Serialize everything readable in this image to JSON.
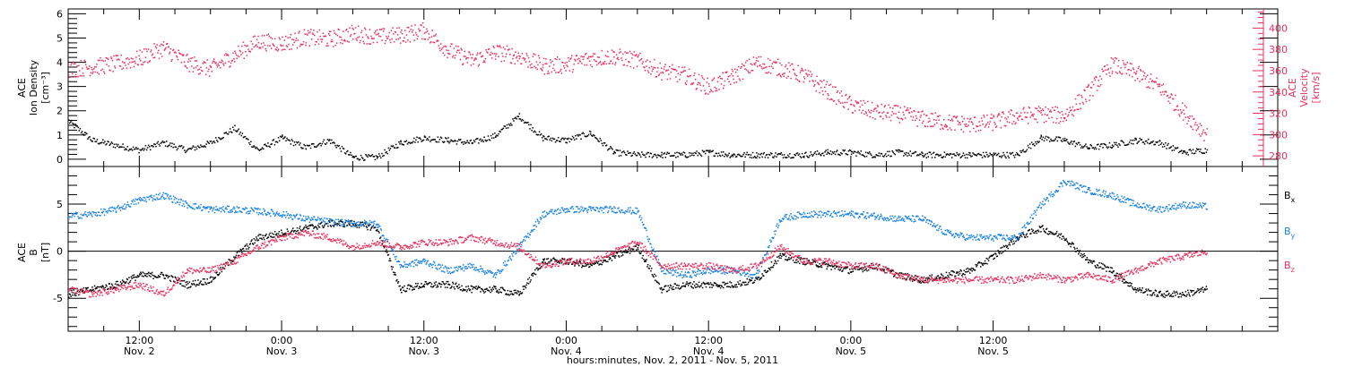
{
  "chart_data": [
    {
      "type": "scatter",
      "panel": "top",
      "ylabel_left": [
        "ACE",
        "Ion Density",
        "[cm⁻³]"
      ],
      "ylabel_right": [
        "ACE",
        "Velocity",
        "[km/s]"
      ],
      "yticks_left": [
        "0",
        "1",
        "2",
        "3",
        "4",
        "5",
        "6"
      ],
      "yticks_right": [
        "280",
        "300",
        "320",
        "340",
        "360",
        "380",
        "400"
      ],
      "ylim_left": [
        -0.3,
        6.2
      ],
      "ylim_right": [
        270,
        418
      ],
      "right_axis_color": "#e8305c",
      "series": [
        {
          "axis": "left",
          "color": "#000000",
          "x": [
            0,
            2,
            4,
            6,
            8,
            10,
            12,
            14,
            16,
            18,
            20,
            22,
            24,
            26,
            28,
            30,
            32,
            34,
            36,
            38,
            40,
            42,
            44,
            46,
            48,
            50,
            52,
            54,
            56,
            58,
            60,
            62,
            64,
            66,
            68,
            70,
            72,
            74,
            76,
            78,
            80,
            82,
            84,
            86,
            88,
            90,
            92,
            94,
            96
          ],
          "values": [
            1.6,
            0.8,
            0.6,
            0.4,
            0.7,
            0.4,
            0.7,
            1.3,
            0.4,
            0.9,
            0.5,
            0.8,
            0.1,
            0.1,
            0.7,
            0.9,
            0.8,
            0.7,
            1.0,
            1.8,
            0.9,
            0.8,
            1.1,
            0.3,
            0.2,
            0.2,
            0.2,
            0.3,
            0.2,
            0.2,
            0.2,
            0.2,
            0.3,
            0.3,
            0.2,
            0.3,
            0.2,
            0.2,
            0.2,
            0.2,
            0.2,
            0.9,
            0.8,
            0.5,
            0.6,
            0.8,
            0.7,
            0.3,
            0.4
          ]
        },
        {
          "axis": "right",
          "color": "#e8305c",
          "x": [
            0,
            2,
            4,
            6,
            8,
            10,
            12,
            14,
            16,
            18,
            20,
            22,
            24,
            26,
            28,
            30,
            32,
            34,
            36,
            38,
            40,
            42,
            44,
            46,
            48,
            50,
            52,
            54,
            56,
            58,
            60,
            62,
            64,
            66,
            68,
            70,
            72,
            74,
            76,
            78,
            80,
            82,
            84,
            86,
            88,
            90,
            92,
            94,
            96
          ],
          "values": [
            362,
            364,
            367,
            372,
            382,
            368,
            362,
            375,
            388,
            386,
            392,
            390,
            396,
            392,
            394,
            398,
            380,
            370,
            378,
            374,
            365,
            366,
            372,
            374,
            370,
            360,
            356,
            345,
            355,
            368,
            363,
            356,
            342,
            328,
            322,
            320,
            315,
            312,
            310,
            312,
            318,
            320,
            318,
            340,
            366,
            358,
            345,
            322,
            300
          ]
        }
      ]
    },
    {
      "type": "scatter",
      "panel": "bottom",
      "ylabel_left": [
        "ACE",
        "B",
        "[nT]"
      ],
      "yticks_left": [
        "-5",
        "0",
        "5"
      ],
      "ylim": [
        -8.5,
        9.0
      ],
      "series": [
        {
          "name": "Bx",
          "color": "#000000",
          "x": [
            0,
            2,
            4,
            6,
            8,
            10,
            12,
            14,
            16,
            18,
            20,
            22,
            24,
            26,
            28,
            30,
            32,
            34,
            36,
            38,
            40,
            42,
            44,
            46,
            48,
            50,
            52,
            54,
            56,
            58,
            60,
            62,
            64,
            66,
            68,
            70,
            72,
            74,
            76,
            78,
            80,
            82,
            84,
            86,
            88,
            90,
            92,
            94,
            96
          ],
          "values": [
            -4.5,
            -4.0,
            -3.5,
            -2.5,
            -2.5,
            -3.5,
            -3.0,
            -0.5,
            1.5,
            2.0,
            2.5,
            3.0,
            3.0,
            2.5,
            -4.0,
            -3.5,
            -3.5,
            -4.0,
            -4.0,
            -4.5,
            -1.0,
            -1.0,
            -1.5,
            -0.5,
            0.5,
            -4.0,
            -3.5,
            -3.5,
            -3.5,
            -3.0,
            -0.5,
            -1.0,
            -1.5,
            -2.0,
            -1.5,
            -2.5,
            -3.0,
            -2.5,
            -2.0,
            -0.5,
            1.5,
            2.5,
            1.5,
            -1.0,
            -2.0,
            -4.0,
            -4.5,
            -4.5,
            -4.0
          ]
        },
        {
          "name": "By",
          "color": "#1a82e0",
          "x": [
            0,
            2,
            4,
            6,
            8,
            10,
            12,
            14,
            16,
            18,
            20,
            22,
            24,
            26,
            28,
            30,
            32,
            34,
            36,
            38,
            40,
            42,
            44,
            46,
            48,
            50,
            52,
            54,
            56,
            58,
            60,
            62,
            64,
            66,
            68,
            70,
            72,
            74,
            76,
            78,
            80,
            82,
            84,
            86,
            88,
            90,
            92,
            94,
            96
          ],
          "values": [
            3.8,
            4.0,
            4.5,
            5.5,
            6.0,
            5.0,
            4.5,
            4.5,
            4.3,
            4.0,
            3.5,
            3.2,
            3.0,
            3.0,
            -1.5,
            -1.0,
            -2.0,
            -1.5,
            -2.5,
            0.5,
            4.0,
            4.5,
            4.5,
            4.5,
            4.3,
            -2.0,
            -2.5,
            -2.0,
            -2.0,
            -2.5,
            3.5,
            4.0,
            4.0,
            4.0,
            3.8,
            3.5,
            3.5,
            2.0,
            1.5,
            1.5,
            1.5,
            5.0,
            7.5,
            6.5,
            6.0,
            5.0,
            4.5,
            5.0,
            4.8
          ]
        },
        {
          "name": "Bz",
          "color": "#e8305c",
          "x": [
            0,
            2,
            4,
            6,
            8,
            10,
            12,
            14,
            16,
            18,
            20,
            22,
            24,
            26,
            28,
            30,
            32,
            34,
            36,
            38,
            40,
            42,
            44,
            46,
            48,
            50,
            52,
            54,
            56,
            58,
            60,
            62,
            64,
            66,
            68,
            70,
            72,
            74,
            76,
            78,
            80,
            82,
            84,
            86,
            88,
            90,
            92,
            94,
            96
          ],
          "values": [
            -4.0,
            -4.5,
            -4.0,
            -3.5,
            -4.5,
            -2.0,
            -2.0,
            -1.0,
            0.5,
            1.5,
            2.0,
            1.5,
            0.5,
            1.0,
            0.5,
            1.0,
            1.0,
            1.5,
            1.0,
            0.5,
            -1.5,
            -1.0,
            -1.0,
            0.0,
            1.0,
            -1.5,
            -1.5,
            -1.5,
            -2.0,
            -1.5,
            0.5,
            -1.0,
            -1.0,
            -1.5,
            -1.5,
            -2.5,
            -3.0,
            -3.0,
            -3.0,
            -3.0,
            -3.0,
            -2.5,
            -3.0,
            -2.5,
            -3.0,
            -2.0,
            -1.0,
            -0.5,
            0.0
          ]
        }
      ]
    }
  ],
  "x_axis": {
    "unit": "hours from Nov. 2 06:00",
    "range": [
      0,
      102
    ],
    "data_extent": [
      0,
      96
    ],
    "major_ticks": [
      {
        "x": 6,
        "time": "12:00",
        "day": "Nov. 2"
      },
      {
        "x": 18,
        "time": "0:00",
        "day": "Nov. 3"
      },
      {
        "x": 30,
        "time": "12:00",
        "day": "Nov. 3"
      },
      {
        "x": 42,
        "time": "0:00",
        "day": "Nov. 4"
      },
      {
        "x": 54,
        "time": "12:00",
        "day": "Nov. 4"
      },
      {
        "x": 66,
        "time": "0:00",
        "day": "Nov. 5"
      },
      {
        "x": 78,
        "time": "12:00",
        "day": "Nov. 5"
      }
    ],
    "xlabel": "hours:minutes, Nov.  2, 2011 - Nov.  5, 2011"
  },
  "legend": [
    {
      "base": "B",
      "sub": "x",
      "color": "#000000"
    },
    {
      "base": "B",
      "sub": "y",
      "color": "#1a82e0"
    },
    {
      "base": "B",
      "sub": "z",
      "color": "#e8305c"
    }
  ]
}
